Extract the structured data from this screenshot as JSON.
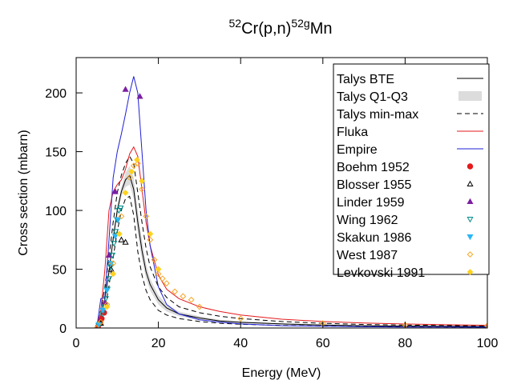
{
  "chart_data": {
    "type": "line",
    "title_parts": [
      {
        "text": "52",
        "sup": true
      },
      {
        "text": "Cr(p,n)",
        "sup": false
      },
      {
        "text": "52g",
        "sup": true
      },
      {
        "text": "Mn",
        "sup": false
      }
    ],
    "xlabel": "Energy (MeV)",
    "ylabel": "Cross section (mbarn)",
    "xlim": [
      0,
      100
    ],
    "ylim": [
      0,
      230
    ],
    "xticks": [
      0,
      20,
      40,
      60,
      80,
      100
    ],
    "yticks": [
      0,
      50,
      100,
      150,
      200
    ],
    "legend_position": "top-right",
    "talys_band": {
      "name": "Talys Q1-Q3",
      "color": "#dcdcdc",
      "x": [
        5,
        6,
        7,
        8,
        9,
        10,
        11,
        12,
        13,
        14,
        15,
        16,
        17,
        18,
        20,
        22,
        25,
        30,
        35,
        40,
        50,
        60,
        70,
        80,
        90,
        100
      ],
      "lower": [
        0,
        8,
        22,
        45,
        72,
        95,
        112,
        120,
        122,
        110,
        80,
        58,
        42,
        32,
        20,
        14,
        10,
        7,
        5,
        4,
        3,
        2,
        1.6,
        1.4,
        1.2,
        1.0
      ],
      "upper": [
        0,
        12,
        28,
        52,
        80,
        104,
        120,
        132,
        138,
        128,
        100,
        75,
        55,
        42,
        28,
        20,
        14,
        10,
        7,
        5.5,
        4,
        3,
        2.2,
        1.8,
        1.5,
        1.3
      ]
    },
    "series": [
      {
        "name": "Talys BTE",
        "color": "#000000",
        "dash": "",
        "x": [
          5,
          6,
          7,
          8,
          9,
          10,
          11,
          12,
          13,
          14,
          15,
          16,
          17,
          18,
          20,
          22,
          25,
          30,
          35,
          40,
          50,
          60,
          70,
          80,
          90,
          100
        ],
        "y": [
          0,
          10,
          25,
          48,
          76,
          100,
          116,
          126,
          130,
          118,
          90,
          66,
          48,
          37,
          24,
          17,
          12,
          8.5,
          6,
          4.8,
          3.5,
          2.5,
          1.9,
          1.6,
          1.4,
          1.2
        ]
      },
      {
        "name": "Talys min-max",
        "color": "#000000",
        "dash": "6,4",
        "x": [
          5,
          6,
          7,
          8,
          9,
          10,
          11,
          12,
          13,
          14,
          15,
          16,
          17,
          18,
          20,
          22,
          25,
          30,
          35,
          40,
          50,
          60,
          70,
          80,
          90,
          100
        ],
        "y": [
          0,
          5,
          16,
          36,
          60,
          82,
          100,
          110,
          112,
          96,
          65,
          45,
          32,
          24,
          15,
          11,
          8,
          5.5,
          4,
          3.2,
          2.2,
          1.6,
          1.2,
          1.0,
          0.9,
          0.8
        ]
      },
      {
        "name": "",
        "color": "#000000",
        "dash": "6,4",
        "x": [
          5,
          6,
          7,
          8,
          9,
          10,
          11,
          12,
          13,
          14,
          15,
          16,
          17,
          18,
          20,
          22,
          25,
          30,
          35,
          40,
          50,
          60,
          70,
          80,
          90,
          100
        ],
        "y": [
          0,
          15,
          35,
          60,
          90,
          115,
          130,
          140,
          146,
          140,
          115,
          90,
          68,
          52,
          35,
          26,
          18,
          13,
          10,
          8,
          5.5,
          4,
          3,
          2.5,
          2.1,
          1.8
        ]
      },
      {
        "name": "Fluka",
        "color": "#e41a1c",
        "dash": "",
        "x": [
          5,
          6,
          7,
          8,
          9,
          10,
          11,
          12,
          13,
          14,
          15,
          16,
          17,
          18,
          20,
          22,
          25,
          30,
          35,
          40,
          50,
          60,
          70,
          80,
          90,
          100
        ],
        "y": [
          0,
          15,
          50,
          100,
          116,
          122,
          126,
          135,
          148,
          154,
          146,
          118,
          90,
          70,
          45,
          33,
          25,
          18,
          14,
          11,
          7.5,
          5.5,
          4.2,
          3.4,
          2.8,
          2.3
        ]
      },
      {
        "name": "Empire",
        "color": "#1f1fd6",
        "dash": "",
        "x": [
          5,
          6,
          7,
          8,
          9,
          10,
          11,
          12,
          13,
          14,
          15,
          16,
          17,
          18,
          20,
          22,
          25,
          30,
          35,
          40,
          50,
          60,
          70,
          80,
          90,
          100
        ],
        "y": [
          0,
          25,
          26,
          75,
          128,
          150,
          165,
          182,
          200,
          214,
          200,
          150,
          100,
          70,
          35,
          20,
          12,
          7,
          5,
          3.5,
          2,
          1.5,
          1.1,
          0.9,
          0.8,
          0.7
        ]
      }
    ],
    "experiments": [
      {
        "name": "Boehm 1952",
        "marker": "circle",
        "color": "#e41a1c",
        "x": [
          5.3,
          5.8,
          6.2,
          6.8
        ],
        "y": [
          1,
          4,
          8,
          13
        ]
      },
      {
        "name": "Blosser 1955",
        "marker": "triangle-up-open",
        "color": "#000000",
        "x": [
          6,
          8.5,
          11,
          12
        ],
        "y": [
          4,
          50,
          75,
          73
        ]
      },
      {
        "name": "Linder 1959",
        "marker": "triangle-up",
        "color": "#7b1fa2",
        "x": [
          7,
          8,
          9.5,
          12,
          15.5
        ],
        "y": [
          22,
          62,
          116,
          203,
          197
        ]
      },
      {
        "name": "Wing 1962",
        "marker": "triangle-down-open",
        "color": "#008b8b",
        "x": [
          5.5,
          6.3,
          6.8,
          7.2,
          7.6,
          8,
          8.4,
          8.8,
          9.2,
          9.6,
          10,
          10.4,
          10.8
        ],
        "y": [
          2,
          12,
          18,
          25,
          33,
          42,
          52,
          62,
          72,
          82,
          92,
          100,
          102
        ]
      },
      {
        "name": "Skakun 1986",
        "marker": "triangle-down",
        "color": "#29b6f6",
        "x": [
          5.5,
          6.5,
          7.5,
          8.5,
          9.5,
          10.2
        ],
        "y": [
          3,
          15,
          32,
          55,
          78,
          92
        ]
      },
      {
        "name": "West 1987",
        "marker": "diamond-open",
        "color": "#f5a623",
        "x": [
          5,
          6,
          7.5,
          9,
          11,
          13,
          14,
          15,
          16,
          17,
          18,
          19,
          20,
          21,
          22,
          24,
          26,
          28,
          30,
          40,
          60,
          80,
          100
        ],
        "y": [
          0,
          5,
          20,
          55,
          95,
          128,
          138,
          140,
          118,
          95,
          75,
          58,
          46,
          42,
          38,
          31,
          27,
          24,
          18,
          8,
          4,
          2.5,
          2
        ]
      },
      {
        "name": "Levkovski 1991",
        "marker": "diamond",
        "color": "#ffd21f",
        "x": [
          7.5,
          9,
          10.5,
          12,
          13.5,
          14.8,
          16,
          18,
          20
        ],
        "y": [
          18,
          46,
          80,
          115,
          133,
          143,
          125,
          80,
          50
        ]
      }
    ]
  }
}
